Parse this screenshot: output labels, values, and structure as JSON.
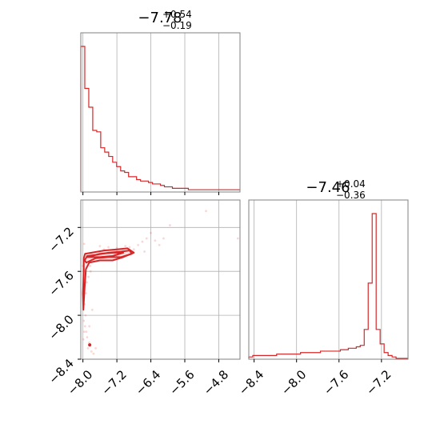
{
  "chart_data": [
    {
      "type": "histogram",
      "panel": "top-left",
      "title": {
        "value": "−7.78",
        "plus": "+0.54",
        "minus": "−0.19"
      },
      "xlim": [
        -8.05,
        -4.3
      ],
      "grid": true,
      "color": "#d62728",
      "bins_start": -8.05,
      "bin_width": 0.0938,
      "values": [
        1.0,
        0.71,
        0.58,
        0.42,
        0.41,
        0.3,
        0.27,
        0.24,
        0.2,
        0.17,
        0.14,
        0.13,
        0.1,
        0.1,
        0.08,
        0.07,
        0.07,
        0.06,
        0.05,
        0.05,
        0.04,
        0.03,
        0.03,
        0.02,
        0.02,
        0.02,
        0.02,
        0.01,
        0.01,
        0.01,
        0.01,
        0.01,
        0.01,
        0.01,
        0.01,
        0.01,
        0.01,
        0.01,
        0.01,
        0.01
      ]
    },
    {
      "type": "histogram",
      "panel": "bottom-right",
      "title": {
        "value": "−7.46",
        "plus": "+0.04",
        "minus": "−0.36"
      },
      "xlim": [
        -8.45,
        -6.95
      ],
      "xticks": [
        "−8.4",
        "−8.0",
        "−7.6",
        "−7.2"
      ],
      "xtick_values": [
        -8.4,
        -8.0,
        -7.6,
        -7.2
      ],
      "grid": true,
      "color": "#d62728",
      "bins_start": -8.45,
      "bin_width": 0.0375,
      "values": [
        0.01,
        0.02,
        0.02,
        0.02,
        0.02,
        0.02,
        0.02,
        0.03,
        0.03,
        0.03,
        0.03,
        0.03,
        0.03,
        0.04,
        0.04,
        0.04,
        0.04,
        0.04,
        0.05,
        0.05,
        0.05,
        0.05,
        0.05,
        0.06,
        0.06,
        0.07,
        0.07,
        0.08,
        0.09,
        0.2,
        0.52,
        1.0,
        0.2,
        0.1,
        0.04,
        0.02,
        0.01,
        0.0,
        0.0,
        0.0
      ]
    },
    {
      "type": "scatter",
      "panel": "bottom-left",
      "xlim": [
        -8.05,
        -4.3
      ],
      "ylim": [
        -8.4,
        -6.95
      ],
      "xticks": [
        "−8.0",
        "−7.2",
        "−6.4",
        "−5.6",
        "−4.8"
      ],
      "xtick_values": [
        -8.0,
        -7.2,
        -6.4,
        -5.6,
        -4.8
      ],
      "yticks": [
        "−7.2",
        "−7.6",
        "−8.0",
        "−8.4"
      ],
      "ytick_values": [
        -7.2,
        -7.6,
        -8.0,
        -8.4
      ],
      "grid": true,
      "color": "#d62728",
      "contours": [
        [
          [
            -7.96,
            -7.5
          ],
          [
            -7.9,
            -7.46
          ],
          [
            -7.7,
            -7.45
          ],
          [
            -7.4,
            -7.43
          ],
          [
            -7.1,
            -7.42
          ],
          [
            -6.9,
            -7.41
          ],
          [
            -6.85,
            -7.44
          ],
          [
            -7.1,
            -7.47
          ],
          [
            -7.4,
            -7.47
          ],
          [
            -7.7,
            -7.48
          ],
          [
            -7.92,
            -7.52
          ],
          [
            -7.96,
            -7.5
          ]
        ],
        [
          [
            -7.98,
            -7.48
          ],
          [
            -7.95,
            -7.44
          ],
          [
            -7.8,
            -7.43
          ],
          [
            -7.5,
            -7.41
          ],
          [
            -7.2,
            -7.4
          ],
          [
            -6.95,
            -7.39
          ],
          [
            -6.8,
            -7.43
          ],
          [
            -7.05,
            -7.47
          ],
          [
            -7.3,
            -7.5
          ],
          [
            -7.6,
            -7.5
          ],
          [
            -7.85,
            -7.52
          ],
          [
            -7.93,
            -7.58
          ],
          [
            -7.96,
            -7.75
          ],
          [
            -7.99,
            -7.95
          ],
          [
            -8.0,
            -7.8
          ],
          [
            -7.98,
            -7.6
          ],
          [
            -7.98,
            -7.48
          ]
        ],
        [
          [
            -7.9,
            -7.47
          ],
          [
            -7.6,
            -7.44
          ],
          [
            -7.3,
            -7.43
          ],
          [
            -7.05,
            -7.43
          ],
          [
            -7.3,
            -7.46
          ],
          [
            -7.6,
            -7.47
          ],
          [
            -7.9,
            -7.47
          ]
        ]
      ],
      "points": [
        [
          -7.98,
          -8.05
        ],
        [
          -7.95,
          -8.1
        ],
        [
          -7.92,
          -8.15
        ],
        [
          -7.9,
          -8.2
        ],
        [
          -7.85,
          -8.25
        ],
        [
          -7.88,
          -8.3
        ],
        [
          -7.8,
          -8.33
        ],
        [
          -7.96,
          -7.9
        ],
        [
          -7.93,
          -7.8
        ],
        [
          -7.91,
          -7.7
        ],
        [
          -7.87,
          -7.65
        ],
        [
          -7.82,
          -7.6
        ],
        [
          -7.94,
          -8.0
        ],
        [
          -7.97,
          -8.15
        ],
        [
          -7.99,
          -8.22
        ],
        [
          -7.75,
          -8.35
        ],
        [
          -7.7,
          -8.3
        ],
        [
          -7.83,
          -7.55
        ],
        [
          -6.9,
          -7.38
        ],
        [
          -6.7,
          -7.36
        ],
        [
          -6.6,
          -7.33
        ],
        [
          -6.5,
          -7.3
        ],
        [
          -6.4,
          -7.25
        ],
        [
          -6.3,
          -7.32
        ],
        [
          -6.8,
          -7.4
        ],
        [
          -7.0,
          -7.37
        ],
        [
          -7.2,
          -7.39
        ],
        [
          -7.4,
          -7.38
        ],
        [
          -6.2,
          -7.36
        ],
        [
          -6.1,
          -7.3
        ],
        [
          -5.95,
          -7.18
        ],
        [
          -5.1,
          -7.05
        ],
        [
          -4.35,
          -7.3
        ],
        [
          -7.6,
          -7.37
        ],
        [
          -7.5,
          -7.4
        ],
        [
          -6.55,
          -7.42
        ],
        [
          -7.97,
          -7.35
        ],
        [
          -8.0,
          -7.55
        ],
        [
          -7.85,
          -8.1
        ],
        [
          -7.78,
          -7.95
        ]
      ],
      "dense_point": [
        -7.84,
        -8.27
      ]
    }
  ]
}
